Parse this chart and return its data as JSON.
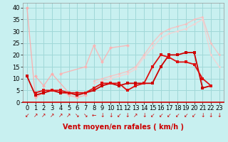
{
  "xlabel": "Vent moyen/en rafales ( km/h )",
  "xlim": [
    -0.5,
    23.5
  ],
  "ylim": [
    0,
    42
  ],
  "yticks": [
    0,
    5,
    10,
    15,
    20,
    25,
    30,
    35,
    40
  ],
  "xticks": [
    0,
    1,
    2,
    3,
    4,
    5,
    6,
    7,
    8,
    9,
    10,
    11,
    12,
    13,
    14,
    15,
    16,
    17,
    18,
    19,
    20,
    21,
    22,
    23
  ],
  "bg_color": "#c8f0f0",
  "grid_color": "#a0d8d8",
  "series": [
    {
      "x": [
        0,
        1,
        2,
        3,
        4,
        5,
        6,
        7
      ],
      "y": [
        40,
        2,
        4,
        5,
        5,
        3,
        2,
        3
      ],
      "color": "#ffaaaa",
      "alpha": 0.85,
      "lw": 1.0,
      "marker": "D",
      "ms": 2.5
    },
    {
      "x": [
        1,
        2,
        3,
        5,
        6
      ],
      "y": [
        11,
        7,
        12,
        4,
        4
      ],
      "color": "#ffaaaa",
      "alpha": 0.85,
      "lw": 1.0,
      "marker": "D",
      "ms": 2.5
    },
    {
      "x": [
        4,
        7,
        8,
        9,
        10,
        12
      ],
      "y": [
        12,
        15,
        24,
        17,
        23,
        24
      ],
      "color": "#ffb0b0",
      "alpha": 0.85,
      "lw": 1.0,
      "marker": "D",
      "ms": 2.5
    },
    {
      "x": [
        8,
        9,
        10,
        11,
        12,
        13,
        14,
        15,
        16,
        17,
        18,
        19,
        20,
        21,
        22,
        23
      ],
      "y": [
        9,
        10,
        11,
        12,
        13,
        15,
        20,
        25,
        29,
        31,
        32,
        33,
        35,
        36,
        25,
        20
      ],
      "color": "#ffb8b8",
      "alpha": 0.75,
      "lw": 1.0,
      "marker": "D",
      "ms": 2.0
    },
    {
      "x": [
        8,
        9,
        10,
        11,
        12,
        13,
        14,
        15,
        16,
        17,
        18,
        19,
        20,
        21,
        22,
        23
      ],
      "y": [
        8,
        9,
        10,
        11,
        12,
        14,
        19,
        23,
        27,
        29,
        30,
        31,
        33,
        35,
        20,
        15
      ],
      "color": "#ffcccc",
      "alpha": 0.75,
      "lw": 1.0,
      "marker": "D",
      "ms": 2.0
    },
    {
      "x": [
        0,
        1,
        2,
        3,
        4,
        5,
        6,
        7,
        8,
        9,
        10,
        11,
        12,
        13,
        14,
        15,
        16,
        17,
        18,
        19,
        20,
        21,
        22
      ],
      "y": [
        11,
        3,
        4,
        5,
        4,
        4,
        3,
        4,
        5,
        7,
        8,
        7,
        8,
        8,
        8,
        8,
        15,
        20,
        20,
        21,
        21,
        6,
        7
      ],
      "color": "#cc0000",
      "alpha": 1.0,
      "lw": 1.3,
      "marker": "s",
      "ms": 2.5
    },
    {
      "x": [
        1,
        2,
        3,
        4,
        5,
        6,
        7,
        8,
        9,
        10,
        11,
        12,
        13,
        14,
        15,
        16,
        17,
        18,
        19,
        20,
        21,
        22
      ],
      "y": [
        4,
        5,
        5,
        5,
        4,
        4,
        4,
        6,
        8,
        8,
        8,
        5,
        7,
        8,
        15,
        20,
        19,
        17,
        17,
        16,
        10,
        7
      ],
      "color": "#dd1111",
      "alpha": 1.0,
      "lw": 1.3,
      "marker": "s",
      "ms": 2.5
    }
  ],
  "wind_dirs": [
    "↙",
    "↗",
    "↗",
    "↗",
    "↗",
    "↗",
    "↘",
    "↘",
    "←",
    "↓",
    "↓",
    "↙",
    "↓",
    "↗",
    "↓",
    "↙",
    "↙",
    "↙",
    "↙",
    "↙",
    "↙",
    "↓",
    "↓",
    "↓"
  ],
  "arrow_color": "#cc0000",
  "xlabel_color": "#cc0000",
  "xlabel_fontsize": 7,
  "tick_fontsize": 6,
  "arrow_fontsize": 5.5
}
